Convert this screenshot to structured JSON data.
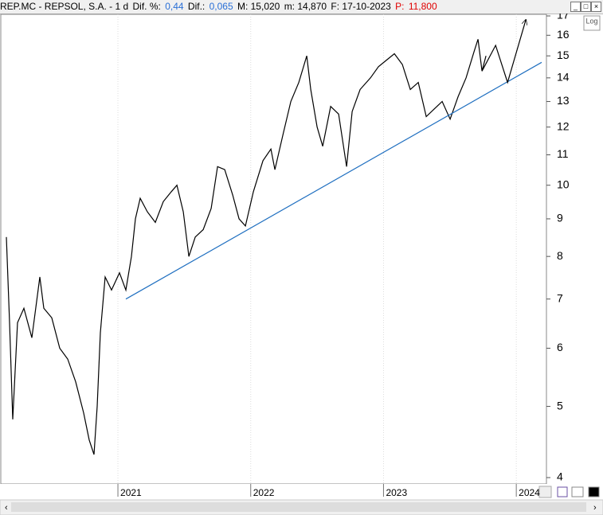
{
  "header": {
    "symbol": "REP.MC - REPSOL, S.A. - 1 d",
    "dif_pct_label": "Dif. %:",
    "dif_pct": "0,44",
    "dif_label": "Dif.:",
    "dif": "0,065",
    "max": "M: 15,020",
    "min": "m: 14,870",
    "date": "F: 17-10-2023",
    "price_label": "P:",
    "price": "11,800"
  },
  "log_button": "Log",
  "chart_data": {
    "type": "line",
    "log_y": true,
    "xlim": [
      2020.112,
      2024.221
    ],
    "xticks": [
      {
        "value": 2021,
        "label": "2021"
      },
      {
        "value": 2022,
        "label": "2022"
      },
      {
        "value": 2023,
        "label": "2023"
      },
      {
        "value": 2024,
        "label": "2024"
      }
    ],
    "ylim": [
      4,
      17
    ],
    "yticks": [
      4,
      5,
      6,
      7,
      8,
      9,
      10,
      11,
      12,
      13,
      14,
      15,
      16,
      17
    ],
    "series": [
      {
        "color": "#000000",
        "x": [
          2020.16,
          2020.184,
          2020.208,
          2020.244,
          2020.292,
          2020.352,
          2020.412,
          2020.442,
          2020.502,
          2020.562,
          2020.622,
          2020.682,
          2020.742,
          2020.784,
          2020.82,
          2020.844,
          2020.868,
          2020.904,
          2020.952,
          2021.012,
          2021.06,
          2021.102,
          2021.132,
          2021.168,
          2021.222,
          2021.282,
          2021.342,
          2021.402,
          2021.444,
          2021.492,
          2021.534,
          2021.582,
          2021.642,
          2021.702,
          2021.75,
          2021.804,
          2021.864,
          2021.912,
          2021.96,
          2022.02,
          2022.092,
          2022.152,
          2022.182,
          2022.242,
          2022.302,
          2022.362,
          2022.422,
          2022.452,
          2022.5,
          2022.542,
          2022.602,
          2022.662,
          2022.722,
          2022.764,
          2022.824,
          2022.902,
          2022.962,
          2023.022,
          2023.082,
          2023.142,
          2023.202,
          2023.262,
          2023.322,
          2023.382,
          2023.442,
          2023.502,
          2023.562,
          2023.622,
          2023.682,
          2023.712,
          2023.742,
          2023.772
        ],
        "values": [
          8.5,
          6.5,
          4.8,
          6.5,
          6.8,
          6.2,
          7.5,
          6.8,
          6.6,
          6.0,
          5.8,
          5.4,
          4.9,
          4.5,
          4.3,
          5.0,
          6.3,
          7.5,
          7.2,
          7.6,
          7.2,
          8.0,
          9.0,
          9.6,
          9.2,
          8.9,
          9.5,
          9.8,
          10.0,
          9.2,
          8.0,
          8.5,
          8.7,
          9.3,
          10.6,
          10.5,
          9.7,
          9.0,
          8.8,
          9.8,
          10.8,
          11.2,
          10.5,
          11.7,
          13.0,
          13.8,
          15.0,
          13.5,
          12.0,
          11.3,
          12.8,
          12.5,
          10.6,
          12.6,
          13.5,
          14.0,
          14.5,
          14.8,
          15.1,
          14.6,
          13.5,
          13.8,
          12.4,
          12.7,
          13.0,
          12.3,
          13.2,
          14.0,
          15.2,
          15.8,
          14.3,
          15.0
        ]
      },
      {
        "color": "#1f6fc0",
        "x": [
          2021.06,
          2024.191
        ],
        "values": [
          7.0,
          14.7
        ]
      },
      {
        "color": "#000000",
        "arrow": true,
        "x": [
          2023.742,
          2023.844,
          2023.934,
          2024.072
        ],
        "values": [
          14.3,
          15.5,
          13.8,
          16.8
        ]
      }
    ]
  }
}
